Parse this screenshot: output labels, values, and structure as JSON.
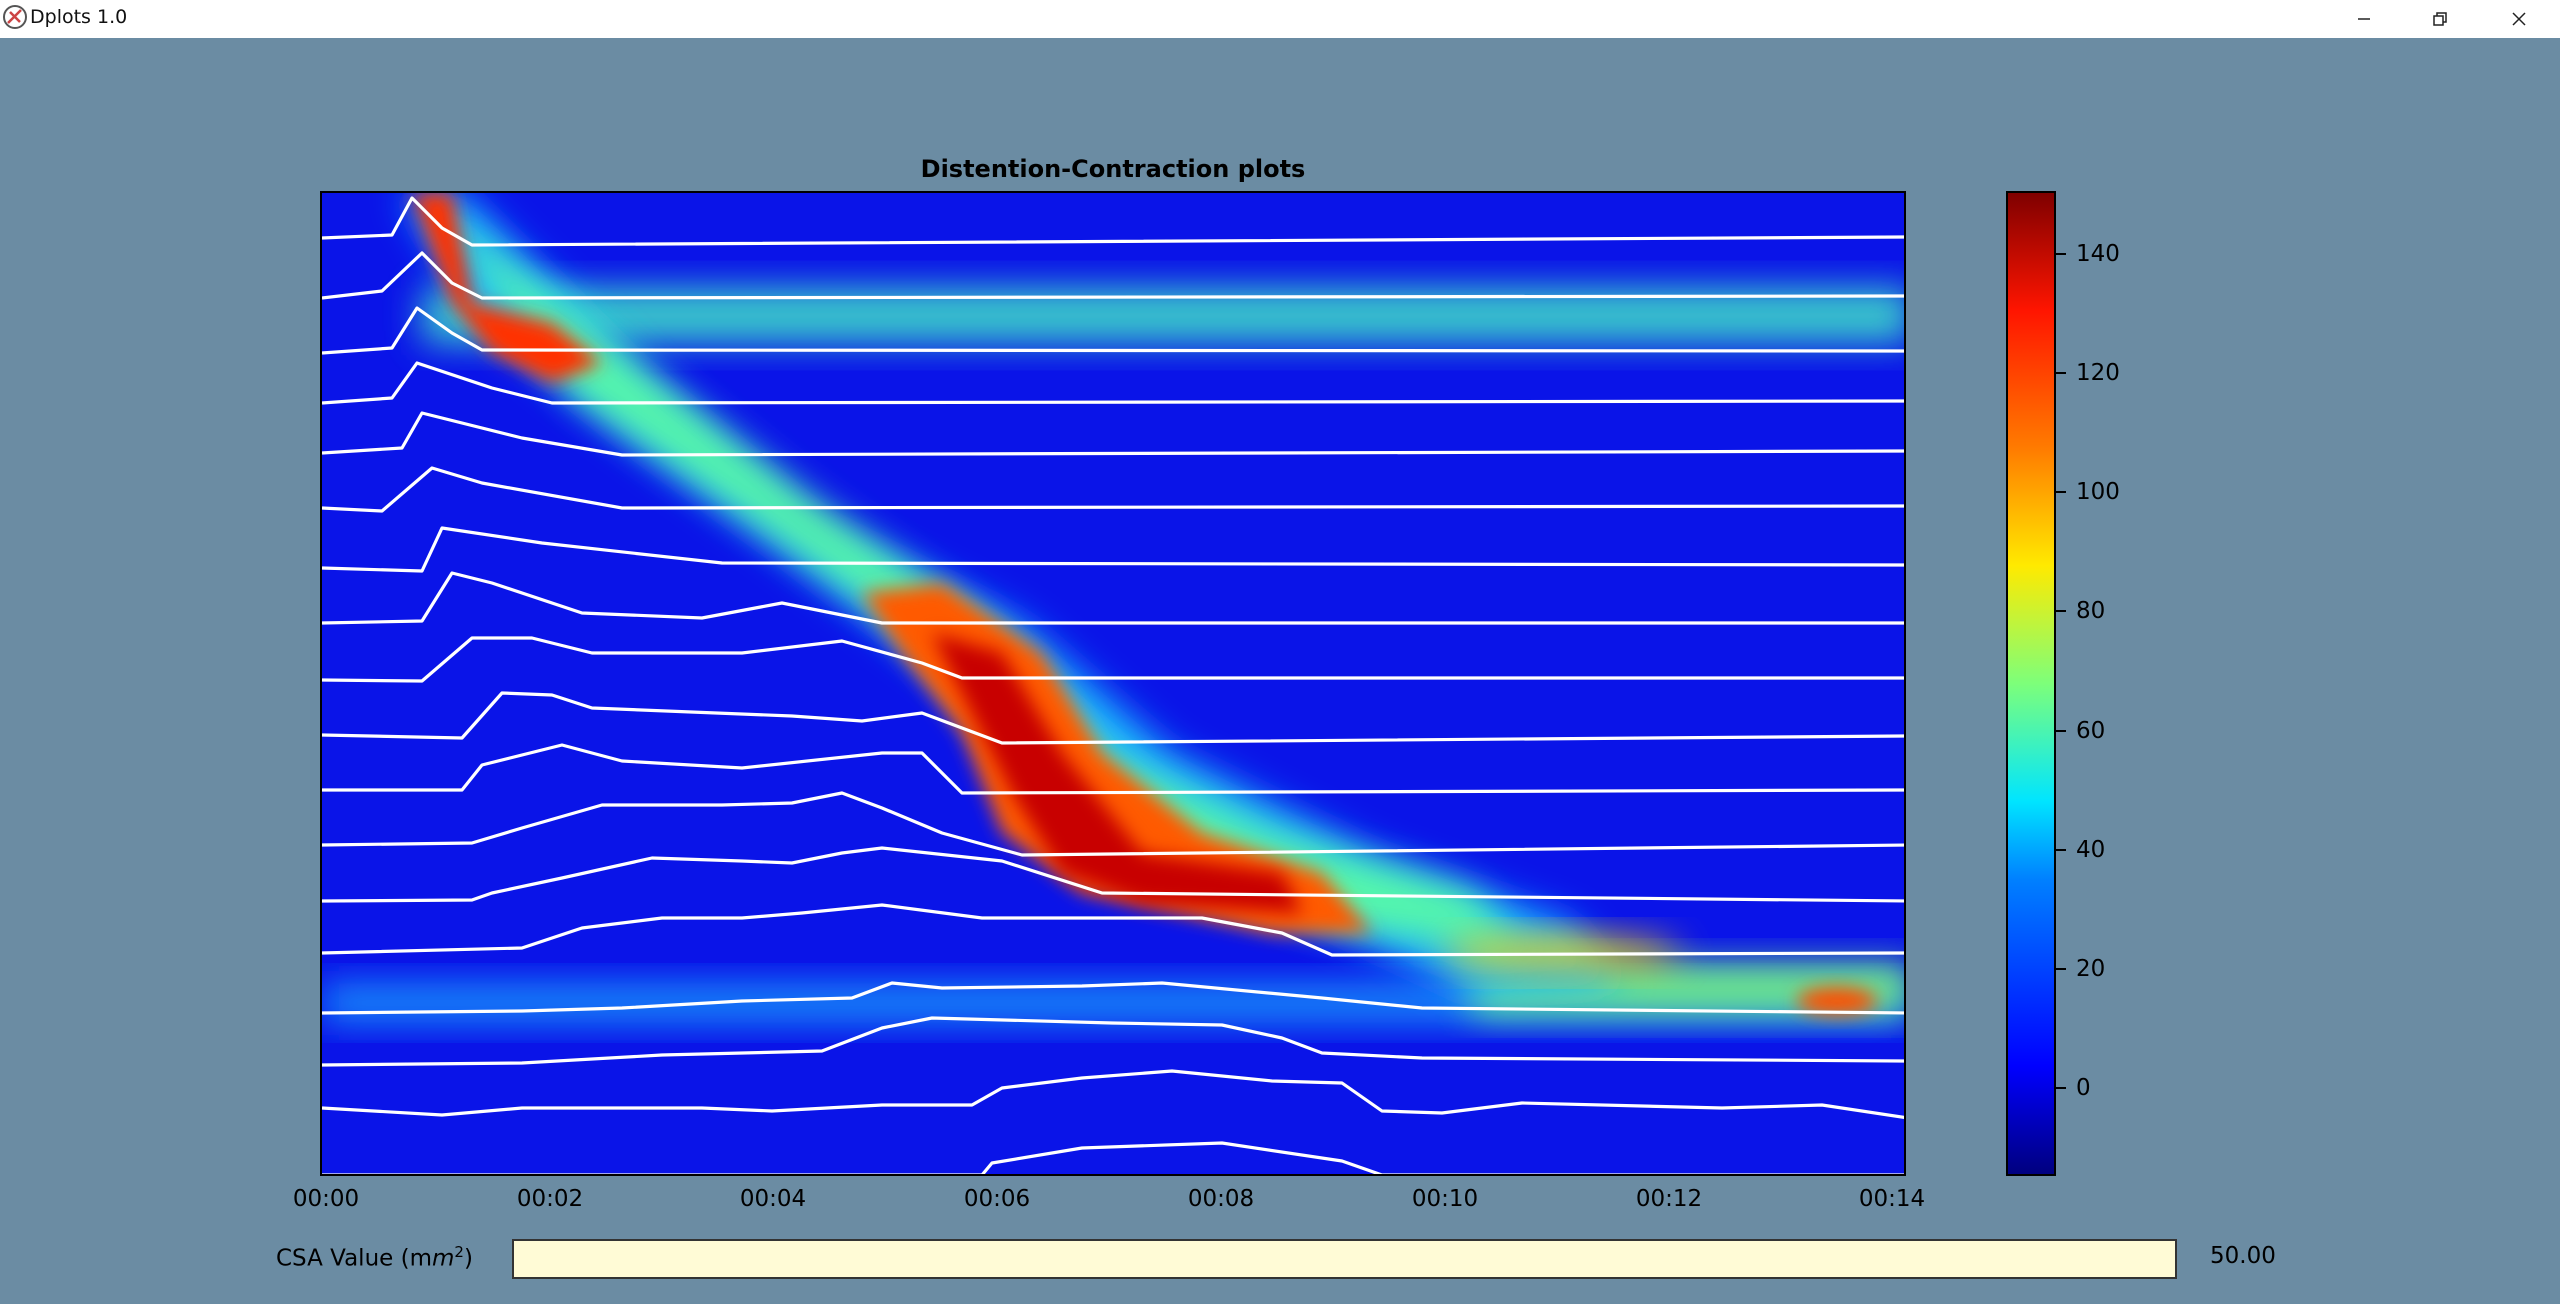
{
  "window": {
    "title": "Dplots 1.0",
    "icon": "app-icon",
    "controls": [
      "minimize-icon",
      "restore-icon",
      "close-icon"
    ]
  },
  "plot": {
    "title": "Distention-Contraction plots",
    "x_ticks": [
      "00:00",
      "00:02",
      "00:04",
      "00:06",
      "00:08",
      "00:10",
      "00:12",
      "00:14"
    ],
    "colorbar_ticks": [
      "0",
      "20",
      "40",
      "60",
      "80",
      "100",
      "120",
      "140"
    ],
    "colormap": "jet",
    "trace_color": "#ffffff"
  },
  "csa": {
    "label_prefix": "CSA Value (m",
    "label_italic": "m",
    "label_sup": "2",
    "label_suffix": ")",
    "value": "50.00",
    "bar_color": "#fffbd6"
  },
  "chart_data": {
    "type": "heatmap",
    "title": "Distention-Contraction plots",
    "x_ticks": [
      "00:00",
      "00:02",
      "00:04",
      "00:06",
      "00:08",
      "00:10",
      "00:12",
      "00:14"
    ],
    "colorbar": {
      "range": [
        -15,
        150
      ],
      "ticks": [
        0,
        20,
        40,
        60,
        80,
        100,
        120,
        140
      ],
      "colormap": "jet"
    },
    "n_traces": 18
  }
}
